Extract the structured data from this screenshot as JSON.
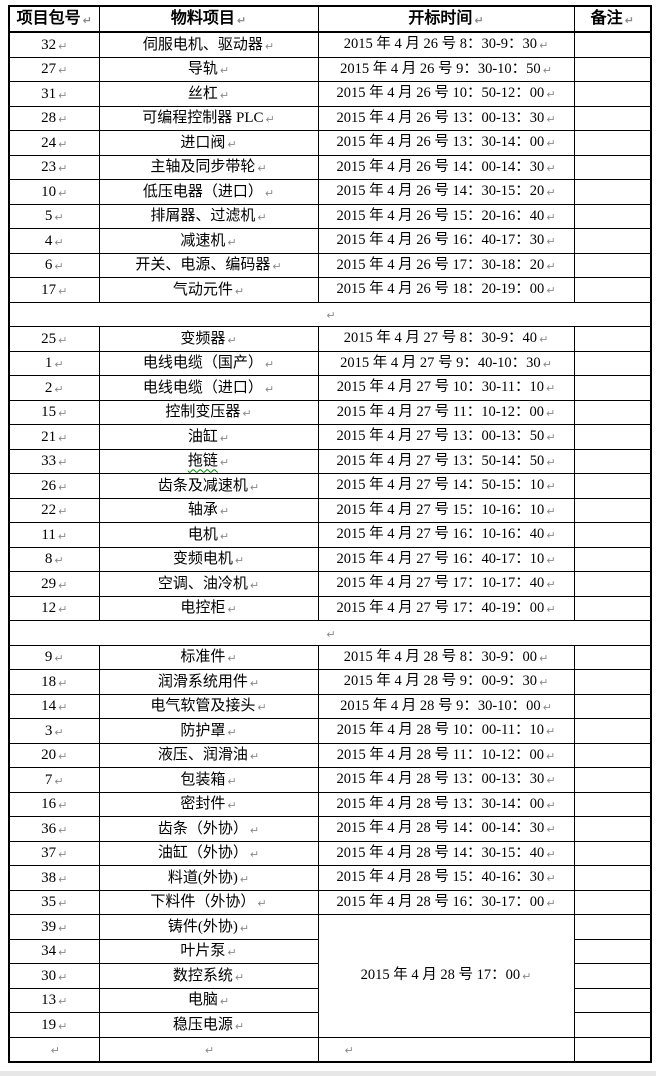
{
  "page": {
    "background": "#ffffff",
    "bottom_strip_color": "#e7e7e7"
  },
  "table": {
    "paragraph_mark": "↵",
    "border_color": "#000000",
    "spellcheck_squiggle_color": "#008000",
    "headers": [
      "项目包号",
      "物料项目",
      "开标时间",
      "备注"
    ],
    "sections": [
      {
        "type": "rows",
        "rows": [
          {
            "no": "32",
            "item": "伺服电机、驱动器",
            "time": "2015 年 4 月 26 号 8：30-9：30"
          },
          {
            "no": "27",
            "item": "导轨",
            "time": "2015 年 4 月 26 号 9：30-10：50"
          },
          {
            "no": "31",
            "item": "丝杠",
            "time": "2015 年 4 月 26 号 10：50-12：00"
          },
          {
            "no": "28",
            "item": "可编程控制器 PLC",
            "time": "2015 年 4 月 26 号 13：00-13：30"
          },
          {
            "no": "24",
            "item": "进口阀",
            "time": "2015 年 4 月 26 号 13：30-14：00"
          },
          {
            "no": "23",
            "item": "主轴及同步带轮",
            "time": "2015 年 4 月 26 号 14：00-14：30"
          },
          {
            "no": "10",
            "item": "低压电器（进口）",
            "time": "2015 年 4 月 26 号 14：30-15：20"
          },
          {
            "no": "5",
            "item": "排屑器、过滤机",
            "time": "2015 年 4 月 26 号 15：20-16：40"
          },
          {
            "no": "4",
            "item": "减速机",
            "time": "2015 年 4 月 26 号 16：40-17：30"
          },
          {
            "no": "6",
            "item": "开关、电源、编码器",
            "time": "2015 年 4 月 26 号 17：30-18：20"
          },
          {
            "no": "17",
            "item": "气动元件",
            "time": "2015 年 4 月 26 号 18：20-19：00"
          }
        ]
      },
      {
        "type": "spacer"
      },
      {
        "type": "rows",
        "rows": [
          {
            "no": "25",
            "item": "变频器",
            "time": "2015 年 4 月 27 号 8：30-9：40"
          },
          {
            "no": "1",
            "item": "电线电缆（国产）",
            "time": "2015 年 4 月 27 号 9：40-10：30"
          },
          {
            "no": "2",
            "item": "电线电缆（进口）",
            "time": "2015 年 4 月 27 号 10：30-11：10"
          },
          {
            "no": "15",
            "item": "控制变压器",
            "time": "2015 年 4 月 27 号 11：10-12：00"
          },
          {
            "no": "21",
            "item": "油缸",
            "time": "2015 年 4 月 27 号 13：00-13：50"
          },
          {
            "no": "33",
            "item": "拖链",
            "time": "2015 年 4 月 27 号 13：50-14：50",
            "spellcheck_underline": true
          },
          {
            "no": "26",
            "item": "齿条及减速机",
            "time": "2015 年 4 月 27 号 14：50-15：10"
          },
          {
            "no": "22",
            "item": "轴承",
            "time": "2015 年 4 月 27 号 15：10-16：10"
          },
          {
            "no": "11",
            "item": "电机",
            "time": "2015 年 4 月 27 号 16：10-16：40"
          },
          {
            "no": "8",
            "item": "变频电机",
            "time": "2015 年 4 月 27 号 16：40-17：10"
          },
          {
            "no": "29",
            "item": "空调、油冷机",
            "time": "2015 年 4 月 27 号 17：10-17：40"
          },
          {
            "no": "12",
            "item": "电控柜",
            "time": "2015 年 4 月 27 号 17：40-19：00"
          }
        ]
      },
      {
        "type": "spacer"
      },
      {
        "type": "rows",
        "rows": [
          {
            "no": "9",
            "item": "标准件",
            "time": "2015 年 4 月 28 号 8：30-9：00"
          },
          {
            "no": "18",
            "item": "润滑系统用件",
            "time": "2015 年 4 月 28 号 9：00-9：30"
          },
          {
            "no": "14",
            "item": "电气软管及接头",
            "time": "2015 年 4 月 28 号 9：30-10：00"
          },
          {
            "no": "3",
            "item": "防护罩",
            "time": "2015 年 4 月 28 号 10：00-11：10"
          },
          {
            "no": "20",
            "item": "液压、润滑油",
            "time": "2015 年 4 月 28 号 11：10-12：00"
          },
          {
            "no": "7",
            "item": "包装箱",
            "time": "2015 年 4 月 28 号 13：00-13：30"
          },
          {
            "no": "16",
            "item": "密封件",
            "time": "2015 年 4 月 28 号 13：30-14：00"
          },
          {
            "no": "36",
            "item": "齿条（外协）",
            "time": "2015 年 4 月 28 号 14：00-14：30"
          },
          {
            "no": "37",
            "item": "油缸（外协）",
            "time": "2015 年 4 月 28 号 14：30-15：40"
          },
          {
            "no": "38",
            "item": "料道(外协)",
            "time": "2015 年 4 月 28 号 15：40-16：30"
          },
          {
            "no": "35",
            "item": "下料件（外协）",
            "time": "2015 年 4 月 28 号 16：30-17：00"
          }
        ]
      },
      {
        "type": "merged",
        "time": "2015 年 4 月 28 号 17：00",
        "rows": [
          {
            "no": "39",
            "item": "铸件(外协)"
          },
          {
            "no": "34",
            "item": "叶片泵"
          },
          {
            "no": "30",
            "item": "数控系统"
          },
          {
            "no": "13",
            "item": "电脑"
          },
          {
            "no": "19",
            "item": "稳压电源"
          }
        ]
      },
      {
        "type": "empty"
      }
    ]
  }
}
